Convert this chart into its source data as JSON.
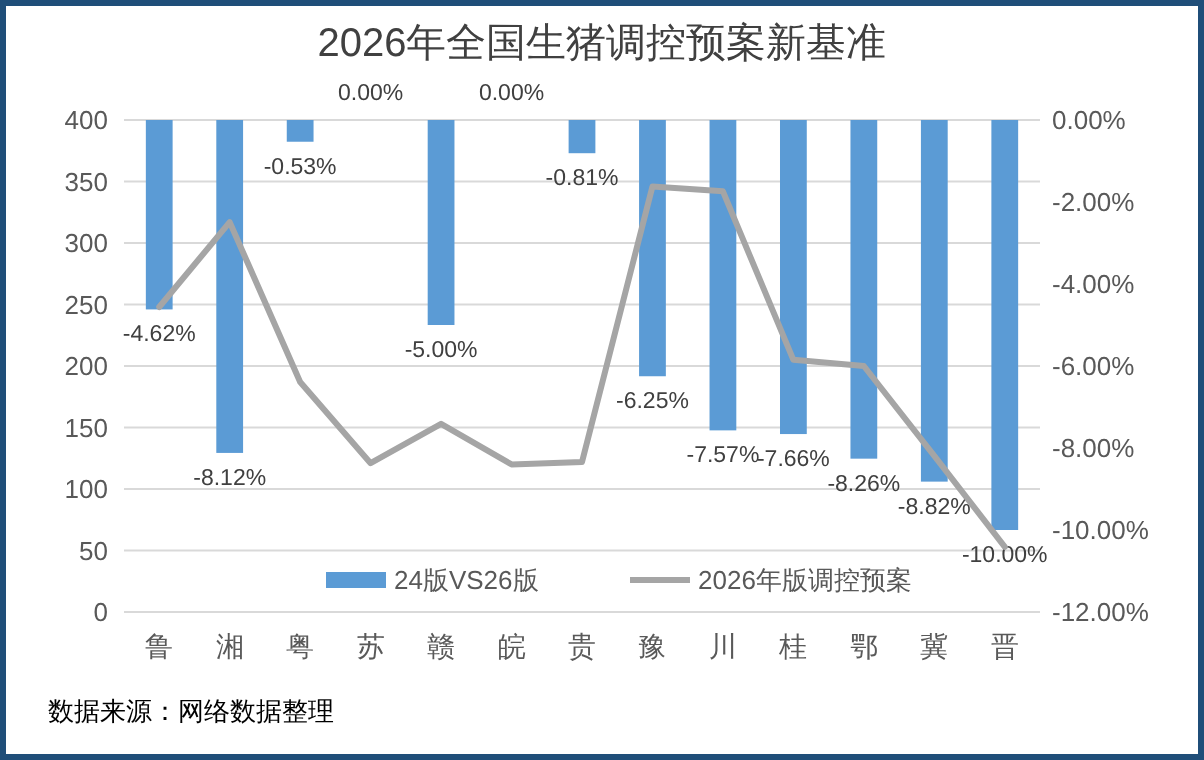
{
  "chart_data": {
    "type": "bar",
    "title": "2026年全国生猪调控预案新基准",
    "categories": [
      "鲁",
      "湘",
      "粤",
      "苏",
      "赣",
      "皖",
      "贵",
      "豫",
      "川",
      "桂",
      "鄂",
      "冀",
      "晋"
    ],
    "series": [
      {
        "name": "24版VS26版",
        "axis": "y2",
        "color": "#5b9bd5",
        "values": [
          -4.62,
          -8.12,
          -0.53,
          0,
          -5,
          0,
          -0.81,
          -6.25,
          -7.57,
          -7.66,
          -8.26,
          -8.82,
          -10
        ],
        "value_labels": [
          "-4.62%",
          "-8.12%",
          "-0.53%",
          "0.00%",
          "-5.00%",
          "0.00%",
          "-0.81%",
          "-6.25%",
          "-7.57%",
          "-7.66%",
          "-8.26%",
          "-8.82%",
          "-10.00%"
        ]
      },
      {
        "name": "2026年版调控预案",
        "type": "line",
        "color": "#a5a5a5",
        "values": [
          248,
          317,
          187,
          121,
          153,
          120,
          122,
          346,
          342,
          205,
          200,
          127,
          53
        ]
      }
    ],
    "ylim": [
      0,
      400
    ],
    "yticks": [
      0,
      50,
      100,
      150,
      200,
      250,
      300,
      350,
      400
    ],
    "y2lim": [
      -12,
      0
    ],
    "y2ticks": [
      {
        "value": 0,
        "label": "0.00%"
      },
      {
        "value": -2,
        "label": "-2.00%"
      },
      {
        "value": -4,
        "label": "-4.00%"
      },
      {
        "value": -6,
        "label": "-6.00%"
      },
      {
        "value": -8,
        "label": "-8.00%"
      },
      {
        "value": -10,
        "label": "-10.00%"
      },
      {
        "value": -12,
        "label": "-12.00%"
      }
    ],
    "grid": "y",
    "legend": "bottom",
    "marker": "none",
    "line_style": "solid",
    "annotations": [
      "数据来源：网络数据整理"
    ]
  }
}
